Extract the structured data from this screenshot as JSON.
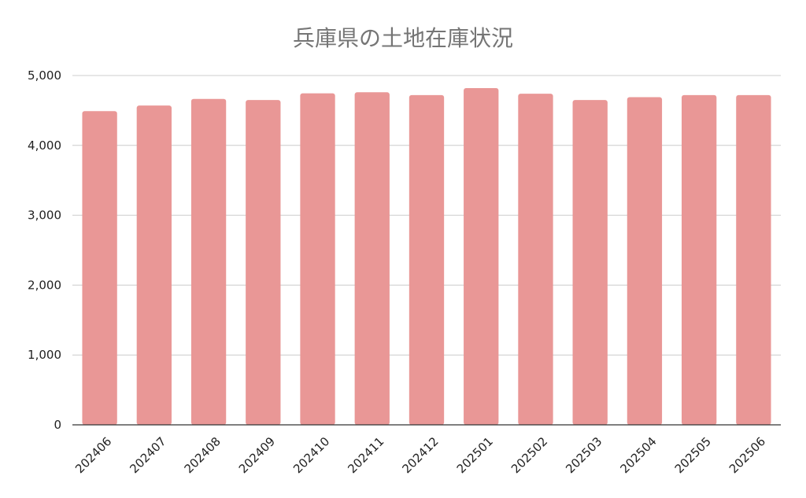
{
  "chart_data": {
    "type": "bar",
    "title": "兵庫県の土地在庫状況",
    "xlabel": "",
    "ylabel": "",
    "categories": [
      "202406",
      "202407",
      "202408",
      "202409",
      "202410",
      "202411",
      "202412",
      "202501",
      "202502",
      "202503",
      "202504",
      "202505",
      "202506"
    ],
    "series": [
      {
        "values": [
          4490,
          4570,
          4665,
          4650,
          4745,
          4760,
          4720,
          4820,
          4740,
          4650,
          4690,
          4720,
          4720
        ]
      }
    ],
    "ylim": [
      0,
      5000
    ],
    "yticks": [
      0,
      1000,
      2000,
      3000,
      4000,
      5000
    ],
    "ytick_labels": [
      "0",
      "1,000",
      "2,000",
      "3,000",
      "4,000",
      "5,000"
    ],
    "grid": true,
    "legend": "none",
    "bar_color": "#e99796"
  }
}
